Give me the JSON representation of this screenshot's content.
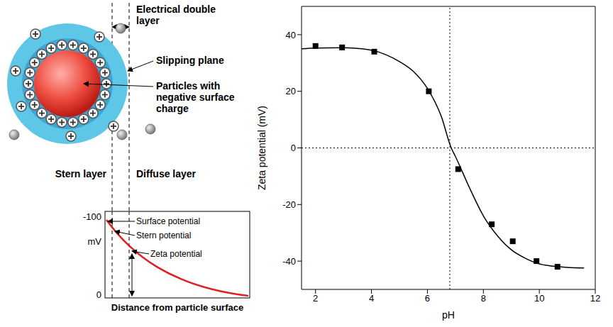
{
  "diagram": {
    "labels": {
      "electrical_double_layer": "Electrical double layer",
      "slipping_plane": "Slipping plane",
      "particle": "Particles with negative surface charge",
      "stern_layer": "Stern layer",
      "diffuse_layer": "Diffuse layer"
    },
    "inset": {
      "y_label": "mV",
      "yticks": [
        -100,
        0
      ],
      "surface_potential": "Surface potential",
      "stern_potential": "Stern potential",
      "zeta_potential": "Zeta potential",
      "x_label": "Distance from particle surface"
    }
  },
  "chart_data": {
    "type": "scatter",
    "x_label": "pH",
    "y_label": "Zeta potential (mV)",
    "xlim": [
      1.5,
      12
    ],
    "xticks": [
      2,
      4,
      6,
      8,
      10,
      12
    ],
    "ylim": [
      -50,
      50
    ],
    "yticks": [
      -40,
      -20,
      0,
      20,
      40
    ],
    "reference_lines": {
      "x": [
        6.8
      ],
      "y": [
        0
      ],
      "line_style": "dotted"
    },
    "series": [
      {
        "type": "scatter",
        "marker": "square",
        "color": "#000000",
        "x": [
          2.0,
          2.95,
          4.1,
          6.05,
          7.1,
          8.3,
          9.05,
          9.9,
          10.65
        ],
        "values": [
          36,
          35.5,
          34,
          20,
          -7.5,
          -27,
          -33,
          -40,
          -42
        ]
      },
      {
        "type": "line",
        "color": "#000000",
        "x": [
          1.5,
          2,
          3,
          4,
          4.5,
          5,
          5.5,
          6,
          6.5,
          6.85,
          7,
          7.5,
          8,
          8.5,
          9,
          9.5,
          10,
          10.5,
          11,
          11.6
        ],
        "values": [
          35,
          35.3,
          35.4,
          34.5,
          33,
          30.5,
          27,
          21,
          11,
          0,
          -3,
          -14,
          -24,
          -31,
          -36,
          -39,
          -41,
          -41.8,
          -42.2,
          -42.4
        ]
      }
    ]
  }
}
